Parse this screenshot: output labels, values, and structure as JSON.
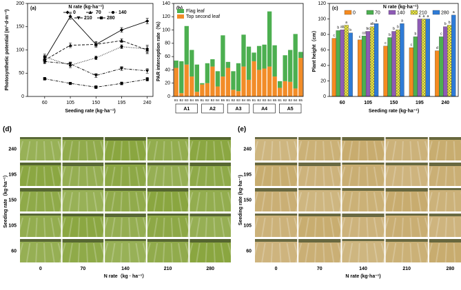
{
  "chart_data": [
    {
      "type": "line",
      "label": "(a)",
      "y_label": "Photosynthetic potential (m²·d·m⁻²)",
      "x_label": "Seeding rate (kg·ha⁻¹)",
      "legend_title": "N rate (kg·ha⁻¹)",
      "x": [
        60,
        105,
        150,
        195,
        240
      ],
      "xlim": [
        30,
        250
      ],
      "xticks": [
        60,
        105,
        150,
        195,
        240
      ],
      "ylim": [
        0,
        200
      ],
      "yticks": [
        0,
        50,
        100,
        150,
        200
      ],
      "series": [
        {
          "name": "0",
          "color": "#000000",
          "dash": "solid",
          "marker": "diamond",
          "values": [
            80,
            172,
            112,
            143,
            162
          ],
          "errors": [
            8,
            6,
            6,
            5,
            6
          ]
        },
        {
          "name": "70",
          "color": "#000000",
          "dash": "dashed",
          "marker": "triangle",
          "values": [
            78,
            110,
            112,
            120,
            100
          ],
          "errors": [
            5,
            5,
            4,
            4,
            8
          ]
        },
        {
          "name": "140",
          "color": "#000000",
          "dash": "dotted",
          "marker": "circle",
          "values": [
            85,
            67,
            83,
            107,
            102
          ],
          "errors": [
            6,
            5,
            4,
            4,
            8
          ]
        },
        {
          "name": "210",
          "color": "#000000",
          "dash": "dashdot",
          "marker": "triangle-down",
          "values": [
            75,
            70,
            45,
            60,
            55
          ],
          "errors": [
            5,
            4,
            4,
            4,
            5
          ]
        },
        {
          "name": "280",
          "color": "#000000",
          "dash": "dashdot",
          "marker": "square",
          "values": [
            38,
            28,
            20,
            28,
            37
          ],
          "errors": [
            3,
            2,
            3,
            3,
            4
          ]
        }
      ]
    },
    {
      "type": "bar",
      "stacked": true,
      "label": "(b)",
      "y_label": "PAR interception rate（%）",
      "categories": [
        "B1",
        "B2",
        "B3",
        "B4",
        "B5",
        "B1",
        "B2",
        "B3",
        "B4",
        "B5",
        "B1",
        "B2",
        "B3",
        "B4",
        "B5",
        "B1",
        "B2",
        "B3",
        "B4",
        "B5",
        "B1",
        "B2",
        "B3",
        "B4",
        "B5"
      ],
      "groups": [
        "A1",
        "A2",
        "A3",
        "A4",
        "A5"
      ],
      "ylim": [
        0,
        140
      ],
      "yticks": [
        0,
        20,
        40,
        60,
        80,
        100,
        120,
        140
      ],
      "legend": "top-left",
      "series": [
        {
          "name": "Top second leaf",
          "color": "#f28c28",
          "values": [
            43,
            5,
            48,
            30,
            7,
            18,
            20,
            45,
            15,
            30,
            43,
            10,
            8,
            45,
            25,
            53,
            40,
            42,
            45,
            30,
            13,
            23,
            22,
            12,
            58
          ]
        },
        {
          "name": "Flag leaf",
          "color": "#4caf50",
          "values": [
            11,
            48,
            58,
            40,
            41,
            2,
            30,
            11,
            23,
            62,
            9,
            28,
            42,
            48,
            50,
            13,
            36,
            36,
            83,
            47,
            10,
            39,
            48,
            82,
            9
          ]
        }
      ]
    },
    {
      "type": "bar",
      "stacked": false,
      "label": "(c)",
      "y_label": "Plant height（cm）",
      "x_label": "Seeding rate (kg·ha⁻¹)",
      "legend_title": "N rate (kg·ha⁻¹)",
      "categories": [
        "60",
        "105",
        "150",
        "195",
        "240"
      ],
      "ylim": [
        0,
        120
      ],
      "yticks": [
        0,
        20,
        40,
        60,
        80,
        100,
        120
      ],
      "series": [
        {
          "name": "0",
          "color": "#f58a1f",
          "values": [
            75,
            73,
            65,
            63,
            59
          ],
          "letters": [
            "c",
            "c",
            "c",
            "c",
            "d"
          ]
        },
        {
          "name": "70",
          "color": "#4caf50",
          "values": [
            85,
            78,
            76,
            77,
            77
          ],
          "letters": [
            "b",
            "cd",
            "b",
            "b",
            "c"
          ]
        },
        {
          "name": "140",
          "color": "#8e5bb5",
          "values": [
            86,
            84,
            84,
            100,
            90
          ],
          "letters": [
            "ab",
            "bc",
            "b",
            "a",
            "b"
          ]
        },
        {
          "name": "210",
          "color": "#f4ef3a",
          "hatch": "x",
          "values": [
            92,
            90,
            86,
            100,
            92
          ],
          "letters": [
            "a",
            "ab",
            "b",
            "a",
            "b"
          ]
        },
        {
          "name": "280",
          "color": "#2e7bd6",
          "values": [
            82,
            94,
            94,
            100,
            105
          ],
          "letters": [
            "b",
            "a",
            "a",
            "a",
            "a"
          ]
        }
      ]
    }
  ],
  "photo_panels": [
    {
      "label": "(d)",
      "row_labels": [
        "240",
        "195",
        "150",
        "105",
        "60"
      ],
      "col_labels": [
        "0",
        "70",
        "140",
        "210",
        "280"
      ],
      "x_label": "N rate（kg · ha⁻¹）",
      "y_label": "Seeding rate（kg·ha⁻¹）",
      "color": "#86a33a"
    },
    {
      "label": "(e)",
      "row_labels": [
        "240",
        "195",
        "150",
        "105",
        "60"
      ],
      "col_labels": [
        "0",
        "70",
        "140",
        "210",
        "280"
      ],
      "x_label": "N rate (kg·ha⁻¹)",
      "y_label": "Seeding rate (kg·ha⁻¹)",
      "color": "#c6a96a"
    }
  ]
}
